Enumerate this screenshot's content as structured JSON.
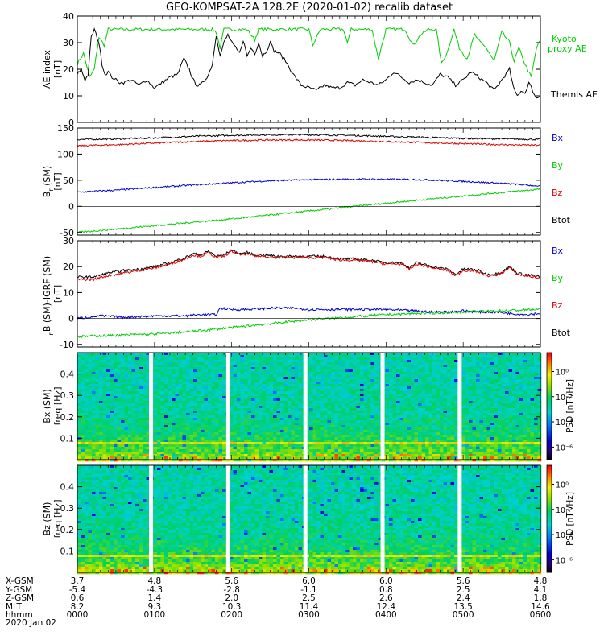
{
  "title": "GEO-KOMPSAT-2A 128.2E (2020-01-02) recalib dataset",
  "colors": {
    "black": "#000000",
    "green": "#00cc00",
    "red": "#dd0000",
    "blue": "#0000cc",
    "gap": "#ffffff"
  },
  "chart_data": [
    {
      "type": "line",
      "id": "ae",
      "ylabel": [
        "AE index",
        "[nT]"
      ],
      "ylim": [
        0,
        40
      ],
      "yticks": [
        0,
        10,
        20,
        30,
        40
      ],
      "xlim": [
        0,
        6
      ],
      "legend": [
        {
          "text": "Kyoto",
          "color": "green"
        },
        {
          "text": "proxy AE",
          "color": "green"
        },
        {
          "text": "Themis AE",
          "color": "black"
        }
      ],
      "series": [
        {
          "name": "Kyoto proxy AE",
          "color": "green",
          "x": [
            0,
            0.08,
            0.16,
            0.22,
            0.28,
            0.35,
            0.4,
            0.5,
            0.6,
            1.0,
            1.4,
            1.6,
            1.7,
            1.75,
            1.8,
            1.85,
            1.9,
            2.0,
            2.1,
            2.2,
            2.3,
            2.35,
            2.45,
            2.55,
            2.65,
            2.75,
            2.82,
            2.9,
            3.0,
            3.05,
            3.15,
            3.25,
            3.35,
            3.45,
            3.5,
            3.55,
            3.65,
            3.75,
            3.82,
            3.9,
            4.0,
            4.1,
            4.18,
            4.25,
            4.35,
            4.45,
            4.55,
            4.65,
            4.72,
            4.8,
            4.88,
            4.95,
            5.05,
            5.15,
            5.22,
            5.3,
            5.4,
            5.5,
            5.6,
            5.66,
            5.72,
            5.8,
            5.88,
            5.95,
            6.0
          ],
          "y": [
            22,
            26,
            17,
            20,
            32,
            29,
            35,
            35,
            35,
            35,
            35,
            35,
            35,
            35,
            34,
            28,
            35,
            35,
            35,
            35,
            31,
            35,
            35,
            35,
            35,
            35,
            35,
            35,
            35,
            29,
            35,
            35,
            35,
            35,
            30,
            35,
            35,
            35,
            35,
            24,
            35,
            35,
            35,
            35,
            29,
            33,
            35,
            35,
            22,
            27,
            35,
            28,
            24,
            33,
            30,
            28,
            23,
            34,
            30,
            23,
            28,
            22,
            17,
            28,
            31
          ]
        },
        {
          "name": "Themis AE",
          "color": "black",
          "x": [
            0,
            0.05,
            0.1,
            0.14,
            0.18,
            0.22,
            0.28,
            0.32,
            0.36,
            0.4,
            0.45,
            0.5,
            0.55,
            0.6,
            0.7,
            0.8,
            0.9,
            1.0,
            1.1,
            1.2,
            1.3,
            1.38,
            1.45,
            1.5,
            1.55,
            1.6,
            1.7,
            1.75,
            1.8,
            1.85,
            1.9,
            1.95,
            2.0,
            2.05,
            2.1,
            2.15,
            2.2,
            2.25,
            2.3,
            2.35,
            2.4,
            2.45,
            2.5,
            2.55,
            2.62,
            2.7,
            2.8,
            2.9,
            3.0,
            3.1,
            3.2,
            3.3,
            3.4,
            3.5,
            3.6,
            3.7,
            3.8,
            3.9,
            4.0,
            4.1,
            4.2,
            4.3,
            4.4,
            4.5,
            4.6,
            4.7,
            4.8,
            4.9,
            5.0,
            5.1,
            5.2,
            5.3,
            5.4,
            5.5,
            5.6,
            5.65,
            5.7,
            5.75,
            5.8,
            5.85,
            5.9,
            5.95,
            6.0
          ],
          "y": [
            18,
            20,
            16,
            18,
            32,
            35,
            30,
            22,
            18,
            19,
            17,
            16,
            15,
            15,
            16,
            14,
            16,
            13,
            15,
            17,
            18,
            24,
            20,
            16,
            14,
            14,
            18,
            22,
            33,
            25,
            30,
            33,
            30,
            28,
            26,
            31,
            25,
            28,
            26,
            30,
            25,
            27,
            30,
            27,
            26,
            23,
            18,
            14,
            13,
            12,
            14,
            13,
            13,
            15,
            14,
            16,
            15,
            14,
            16,
            19,
            17,
            15,
            16,
            15,
            14,
            18,
            17,
            14,
            16,
            19,
            17,
            15,
            12,
            16,
            20,
            13,
            10,
            12,
            11,
            15,
            12,
            9,
            10
          ]
        }
      ]
    },
    {
      "type": "line",
      "id": "b",
      "ylabel": [
        "B",
        "r",
        " (SM)",
        "[nT]"
      ],
      "ylim": [
        -55,
        150
      ],
      "yticks": [
        -50,
        0,
        50,
        100,
        150
      ],
      "xlim": [
        0,
        6
      ],
      "legend": [
        {
          "text": "Bx",
          "color": "blue"
        },
        {
          "text": "By",
          "color": "green"
        },
        {
          "text": "Bz",
          "color": "red"
        },
        {
          "text": "Btot",
          "color": "black"
        }
      ],
      "series": [
        {
          "name": "Btot",
          "color": "black",
          "x": [
            0,
            0.5,
            1,
            1.5,
            2,
            2.5,
            3,
            3.5,
            4,
            4.5,
            5,
            5.5,
            6
          ],
          "y": [
            128,
            129,
            131,
            134,
            136,
            137,
            137,
            136,
            134,
            132,
            130,
            129,
            128
          ]
        },
        {
          "name": "Bz",
          "color": "red",
          "x": [
            0,
            0.5,
            1,
            1.5,
            2,
            2.5,
            3,
            3.5,
            4,
            4.5,
            5,
            5.5,
            6
          ],
          "y": [
            116,
            118,
            121,
            124,
            126,
            127,
            127,
            126,
            124,
            122,
            120,
            118,
            117
          ]
        },
        {
          "name": "Bx",
          "color": "blue",
          "x": [
            0,
            0.5,
            1,
            1.5,
            2,
            2.5,
            3,
            3.5,
            4,
            4.5,
            5,
            5.5,
            6
          ],
          "y": [
            27,
            31,
            36,
            41,
            45,
            49,
            51,
            52,
            52,
            51,
            48,
            44,
            39
          ]
        },
        {
          "name": "By",
          "color": "green",
          "x": [
            0,
            1,
            2,
            3,
            4,
            5,
            6
          ],
          "y": [
            -50,
            -37,
            -24,
            -9,
            6,
            20,
            33
          ]
        }
      ]
    },
    {
      "type": "line",
      "id": "dbigrf",
      "ylabel": [
        "B (SM)-IGRF (SM)",
        "r",
        "[nT]"
      ],
      "ylim": [
        -11,
        30
      ],
      "yticks": [
        -10,
        0,
        10,
        20,
        30
      ],
      "xlim": [
        0,
        6
      ],
      "legend": [
        {
          "text": "Bx",
          "color": "blue"
        },
        {
          "text": "By",
          "color": "green"
        },
        {
          "text": "Bz",
          "color": "red"
        },
        {
          "text": "Btot",
          "color": "black"
        }
      ],
      "series": [
        {
          "name": "Btot",
          "color": "black",
          "x": [
            0,
            0.2,
            0.4,
            0.6,
            0.8,
            1.0,
            1.2,
            1.4,
            1.5,
            1.6,
            1.7,
            1.8,
            1.9,
            2.0,
            2.1,
            2.2,
            2.3,
            2.4,
            2.6,
            2.8,
            3.0,
            3.2,
            3.4,
            3.6,
            3.8,
            4.0,
            4.2,
            4.3,
            4.4,
            4.6,
            4.8,
            4.9,
            5.0,
            5.1,
            5.2,
            5.3,
            5.4,
            5.5,
            5.6,
            5.7,
            5.8,
            6.0
          ],
          "y": [
            16,
            16,
            17.5,
            18.5,
            19,
            20,
            21.5,
            23.5,
            25,
            24.5,
            26,
            24,
            24.5,
            26.5,
            25,
            25.5,
            24.5,
            24.5,
            24,
            24,
            24,
            24,
            23,
            23,
            22.5,
            21.5,
            21.5,
            19.5,
            21.5,
            20,
            19,
            17,
            19,
            19,
            18.5,
            17,
            17,
            18,
            20,
            17.5,
            17,
            16
          ]
        },
        {
          "name": "Bz",
          "color": "red",
          "x": [
            0,
            0.2,
            0.4,
            0.6,
            0.8,
            1.0,
            1.2,
            1.4,
            1.5,
            1.6,
            1.7,
            1.8,
            1.9,
            2.0,
            2.1,
            2.2,
            2.3,
            2.4,
            2.6,
            2.8,
            3.0,
            3.2,
            3.4,
            3.6,
            3.8,
            4.0,
            4.2,
            4.3,
            4.4,
            4.6,
            4.8,
            4.9,
            5.0,
            5.1,
            5.2,
            5.3,
            5.4,
            5.5,
            5.6,
            5.7,
            5.8,
            6.0
          ],
          "y": [
            15,
            15,
            16.5,
            17.5,
            18.5,
            19.5,
            21,
            23,
            24.5,
            24,
            25.5,
            23.5,
            24,
            26,
            24.5,
            25,
            24,
            24,
            23.5,
            23.5,
            23.5,
            23.5,
            22.5,
            22.5,
            22,
            21,
            21,
            19,
            21,
            19.5,
            18.5,
            16.5,
            18.5,
            18.5,
            18,
            16.5,
            16.5,
            17.5,
            19.5,
            17,
            16.5,
            15.5
          ]
        },
        {
          "name": "Bx",
          "color": "blue",
          "x": [
            0,
            0.3,
            0.6,
            1.0,
            1.4,
            1.6,
            1.8,
            1.85,
            2.0,
            2.2,
            2.5,
            2.8,
            3.0,
            3.2,
            3.5,
            3.8,
            4.0,
            4.3,
            4.6,
            4.8,
            5.0,
            5.2,
            5.4,
            5.6,
            5.8,
            6.0
          ],
          "y": [
            0,
            1,
            0.5,
            1,
            1,
            1.5,
            1.5,
            4,
            3.5,
            3.5,
            4,
            4,
            3.5,
            3.5,
            3.5,
            3.5,
            3.5,
            3,
            2.5,
            2.5,
            3,
            2.5,
            2.5,
            2,
            1.5,
            2
          ]
        },
        {
          "name": "By",
          "color": "green",
          "x": [
            0,
            0.5,
            1,
            1.5,
            2,
            2.5,
            3,
            3.5,
            4,
            4.5,
            5,
            5.5,
            6
          ],
          "y": [
            -7,
            -6.5,
            -6,
            -5,
            -3.5,
            -2,
            -0.5,
            0.5,
            1.5,
            2,
            2.5,
            3,
            3.5
          ]
        }
      ]
    },
    {
      "type": "heatmap",
      "id": "bx_spec",
      "ylabel": [
        "Bx (SM)",
        "freq [Hz]"
      ],
      "ylim": [
        0,
        0.5
      ],
      "yticks": [
        0.1,
        0.2,
        0.3,
        0.4
      ],
      "xlim": [
        0,
        6
      ],
      "gaps": [
        0.95,
        1.95,
        2.95,
        3.95,
        4.95
      ],
      "colorbar_label": "PSD [nT²/Hz]",
      "colorbar_ticks": [
        "10⁰",
        "10⁻²",
        "10⁻⁴",
        "10⁻⁶"
      ],
      "colorbar_tick_exp": [
        0,
        -2,
        -4,
        -6
      ],
      "colorbar_range": [
        -7,
        1.5
      ]
    },
    {
      "type": "heatmap",
      "id": "bz_spec",
      "ylabel": [
        "Bz (SM)",
        "freq [Hz]"
      ],
      "ylim": [
        0,
        0.5
      ],
      "yticks": [
        0.1,
        0.2,
        0.3,
        0.4
      ],
      "xlim": [
        0,
        6
      ],
      "gaps": [
        0.95,
        1.95,
        2.95,
        3.95,
        4.95
      ],
      "colorbar_label": "PSD [nT²/Hz]",
      "colorbar_ticks": [
        "10⁰",
        "10⁻²",
        "10⁻⁴",
        "10⁻⁶"
      ],
      "colorbar_tick_exp": [
        0,
        -2,
        -4,
        -6
      ],
      "colorbar_range": [
        -7,
        1.5
      ]
    }
  ],
  "x_axis": {
    "row_labels": [
      "X-GSM",
      "Y-GSM",
      "Z-GSM",
      "MLT",
      "hhmm",
      "2020 Jan 02"
    ],
    "columns": [
      [
        "3.7",
        "-5.4",
        "0.6",
        "8.2",
        "0000"
      ],
      [
        "4.8",
        "-4.3",
        "1.4",
        "9.3",
        "0100"
      ],
      [
        "5.6",
        "-2.8",
        "2.0",
        "10.3",
        "0200"
      ],
      [
        "6.0",
        "-1.1",
        "2.5",
        "11.4",
        "0300"
      ],
      [
        "6.0",
        "0.8",
        "2.6",
        "12.4",
        "0400"
      ],
      [
        "5.6",
        "2.5",
        "2.4",
        "13.5",
        "0500"
      ],
      [
        "4.8",
        "4.1",
        "1.8",
        "14.6",
        "0600"
      ]
    ]
  }
}
